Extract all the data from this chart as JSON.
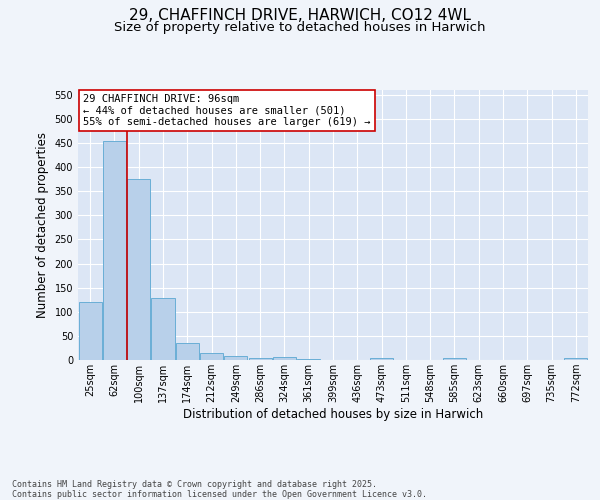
{
  "title_line1": "29, CHAFFINCH DRIVE, HARWICH, CO12 4WL",
  "title_line2": "Size of property relative to detached houses in Harwich",
  "xlabel": "Distribution of detached houses by size in Harwich",
  "ylabel": "Number of detached properties",
  "bar_values": [
    120,
    455,
    375,
    128,
    35,
    14,
    9,
    5,
    6,
    2,
    0,
    0,
    5,
    0,
    0,
    5,
    0,
    0,
    0,
    0,
    5
  ],
  "bin_labels": [
    "25sqm",
    "62sqm",
    "100sqm",
    "137sqm",
    "174sqm",
    "212sqm",
    "249sqm",
    "286sqm",
    "324sqm",
    "361sqm",
    "399sqm",
    "436sqm",
    "473sqm",
    "511sqm",
    "548sqm",
    "585sqm",
    "623sqm",
    "660sqm",
    "697sqm",
    "735sqm",
    "772sqm"
  ],
  "bar_color": "#b8d0ea",
  "bar_edge_color": "#6aaed6",
  "background_color": "#dce6f5",
  "grid_color": "#ffffff",
  "vline_color": "#cc0000",
  "annotation_text": "29 CHAFFINCH DRIVE: 96sqm\n← 44% of detached houses are smaller (501)\n55% of semi-detached houses are larger (619) →",
  "annotation_box_edgecolor": "#cc0000",
  "ylim": [
    0,
    560
  ],
  "yticks": [
    0,
    50,
    100,
    150,
    200,
    250,
    300,
    350,
    400,
    450,
    500,
    550
  ],
  "footer_line1": "Contains HM Land Registry data © Crown copyright and database right 2025.",
  "footer_line2": "Contains public sector information licensed under the Open Government Licence v3.0.",
  "fig_facecolor": "#f0f4fa",
  "title_fontsize": 11,
  "subtitle_fontsize": 9.5,
  "label_fontsize": 8.5,
  "tick_fontsize": 7,
  "annotation_fontsize": 7.5,
  "footer_fontsize": 6
}
